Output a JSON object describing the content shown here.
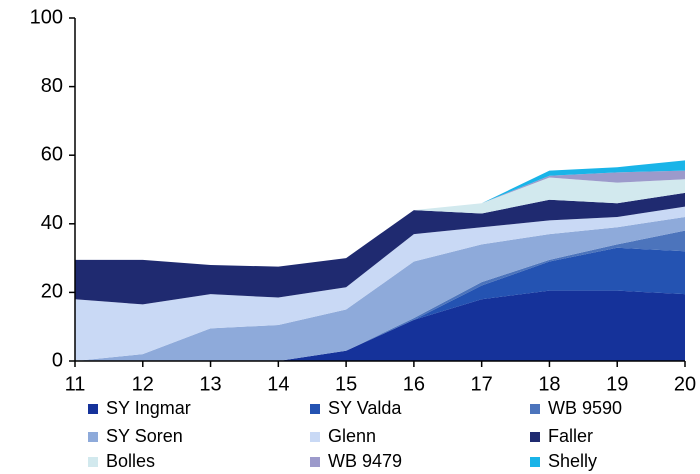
{
  "chart_data": {
    "type": "stacked_area",
    "x": [
      11,
      12,
      13,
      14,
      15,
      16,
      17,
      18,
      19,
      20
    ],
    "xlim": [
      11,
      20
    ],
    "xticks": [
      11,
      12,
      13,
      14,
      15,
      16,
      17,
      18,
      19,
      20
    ],
    "ylim": [
      0,
      100
    ],
    "yticks": [
      0,
      20,
      40,
      60,
      80,
      100
    ],
    "series": [
      {
        "name": "SY Ingmar",
        "color": "#15329a",
        "values": [
          0,
          0,
          0,
          0,
          3,
          12,
          18,
          20.5,
          20.5,
          19.5
        ]
      },
      {
        "name": "SY Valda",
        "color": "#2453b2",
        "values": [
          0,
          0,
          0,
          0,
          0,
          0,
          4,
          8.5,
          12.5,
          12.5
        ]
      },
      {
        "name": "WB 9590",
        "color": "#4c74bc",
        "values": [
          0,
          0,
          0,
          0,
          0,
          0.5,
          1,
          0.5,
          1,
          6
        ]
      },
      {
        "name": "SY Soren",
        "color": "#8eaada",
        "values": [
          0,
          2,
          9.5,
          10.5,
          12,
          16.5,
          11,
          7.5,
          5,
          4
        ]
      },
      {
        "name": "Glenn",
        "color": "#c9d9f5",
        "values": [
          18,
          14.5,
          10,
          8,
          6.5,
          8,
          5,
          4,
          3,
          3
        ]
      },
      {
        "name": "Faller",
        "color": "#1f2a70",
        "values": [
          11.5,
          13,
          8.5,
          9,
          8.5,
          7,
          4,
          6,
          4,
          4
        ]
      },
      {
        "name": "Bolles",
        "color": "#d2e9ee",
        "values": [
          0,
          0,
          0,
          0,
          0,
          0,
          3,
          6.5,
          6,
          4
        ]
      },
      {
        "name": "WB 9479",
        "color": "#9c9acb",
        "values": [
          0,
          0,
          0,
          0,
          0,
          0,
          0,
          0.5,
          3,
          2.5
        ]
      },
      {
        "name": "Shelly",
        "color": "#19b4e8",
        "values": [
          0,
          0,
          0,
          0,
          0,
          0,
          0,
          1.5,
          1.5,
          3
        ]
      }
    ]
  }
}
